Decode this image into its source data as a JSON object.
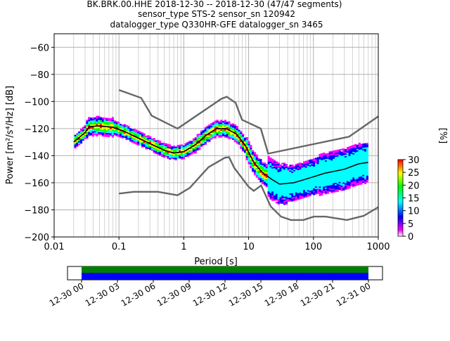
{
  "title_lines": [
    "BK.BRK.00.HHE   2018-12-30 -- 2018-12-30  (47/47 segments)",
    "sensor_type STS-2 sensor_sn 120942",
    "datalogger_type Q330HR-GFE datalogger_sn 3465"
  ],
  "chart_data": {
    "type": "heatmap",
    "xlabel": "Period [s]",
    "ylabel": "Power [m²/s⁴/Hz] [dB]",
    "x_scale": "log",
    "xlim": [
      0.01,
      1000
    ],
    "ylim": [
      -200,
      -50
    ],
    "grid": true,
    "x_ticks": [
      {
        "v": 0.01,
        "label": "0.01"
      },
      {
        "v": 0.1,
        "label": "0.1"
      },
      {
        "v": 1,
        "label": "1"
      },
      {
        "v": 10,
        "label": "10"
      },
      {
        "v": 100,
        "label": "100"
      },
      {
        "v": 1000,
        "label": "1000"
      }
    ],
    "y_ticks": [
      {
        "v": -200,
        "label": "−200"
      },
      {
        "v": -180,
        "label": "−180"
      },
      {
        "v": -160,
        "label": "−160"
      },
      {
        "v": -140,
        "label": "−140"
      },
      {
        "v": -120,
        "label": "−120"
      },
      {
        "v": -100,
        "label": "−100"
      },
      {
        "v": -80,
        "label": "−80"
      },
      {
        "v": -60,
        "label": "−60"
      }
    ],
    "noise_models": {
      "color": "#666666",
      "nhnm": [
        [
          0.1,
          -91.5
        ],
        [
          0.22,
          -97.4
        ],
        [
          0.32,
          -110.5
        ],
        [
          0.8,
          -120
        ],
        [
          3.8,
          -98
        ],
        [
          4.6,
          -96.5
        ],
        [
          6.3,
          -101
        ],
        [
          7.9,
          -113.5
        ],
        [
          15.4,
          -120
        ],
        [
          20,
          -138.5
        ],
        [
          354.8,
          -126
        ],
        [
          1000,
          -111
        ]
      ],
      "nlnm": [
        [
          0.1,
          -168
        ],
        [
          0.17,
          -166.7
        ],
        [
          0.4,
          -166.7
        ],
        [
          0.8,
          -169.2
        ],
        [
          1.24,
          -163.7
        ],
        [
          2.4,
          -148.5
        ],
        [
          4.3,
          -141.5
        ],
        [
          5.0,
          -141.1
        ],
        [
          6.0,
          -149
        ],
        [
          10,
          -163
        ],
        [
          12,
          -166
        ],
        [
          15.6,
          -162
        ],
        [
          21.9,
          -177.5
        ],
        [
          31.6,
          -185
        ],
        [
          45,
          -187.5
        ],
        [
          70,
          -187.5
        ],
        [
          101,
          -185
        ],
        [
          154,
          -185
        ],
        [
          328,
          -187.5
        ],
        [
          600,
          -184.4
        ],
        [
          1000,
          -178
        ]
      ]
    },
    "mean_curve": [
      [
        0.02,
        -130
      ],
      [
        0.03,
        -123
      ],
      [
        0.035,
        -118.5
      ],
      [
        0.05,
        -118
      ],
      [
        0.08,
        -119
      ],
      [
        0.12,
        -122
      ],
      [
        0.2,
        -127
      ],
      [
        0.3,
        -131
      ],
      [
        0.5,
        -136
      ],
      [
        0.7,
        -138
      ],
      [
        1,
        -137
      ],
      [
        1.5,
        -132
      ],
      [
        2.2,
        -125
      ],
      [
        3.2,
        -120
      ],
      [
        4.5,
        -120
      ],
      [
        6.5,
        -124
      ],
      [
        9,
        -133
      ],
      [
        12,
        -145
      ],
      [
        16,
        -152
      ],
      [
        22,
        -157
      ],
      [
        30,
        -161
      ],
      [
        50,
        -160
      ],
      [
        80,
        -157
      ],
      [
        150,
        -153
      ],
      [
        300,
        -150
      ],
      [
        500,
        -146
      ],
      [
        700,
        -145
      ]
    ],
    "colorbar": {
      "label": "[%]",
      "min": 0,
      "max": 30,
      "ticks": [
        0,
        5,
        10,
        15,
        20,
        25,
        30
      ],
      "colors": [
        "#ffffff",
        "#ff00ff",
        "#0000ff",
        "#00ffff",
        "#00ff00",
        "#ffff00",
        "#ff0000"
      ]
    },
    "timeline": {
      "ticks": [
        "12-30 00",
        "12-30 03",
        "12-30 06",
        "12-30 09",
        "12-30 12",
        "12-30 15",
        "12-30 18",
        "12-30 21",
        "12-31 00"
      ],
      "coverage_start": "12-30 00",
      "coverage_end": "12-31 00",
      "colors": {
        "data": "#008000",
        "psd": "#0000ff"
      }
    }
  }
}
